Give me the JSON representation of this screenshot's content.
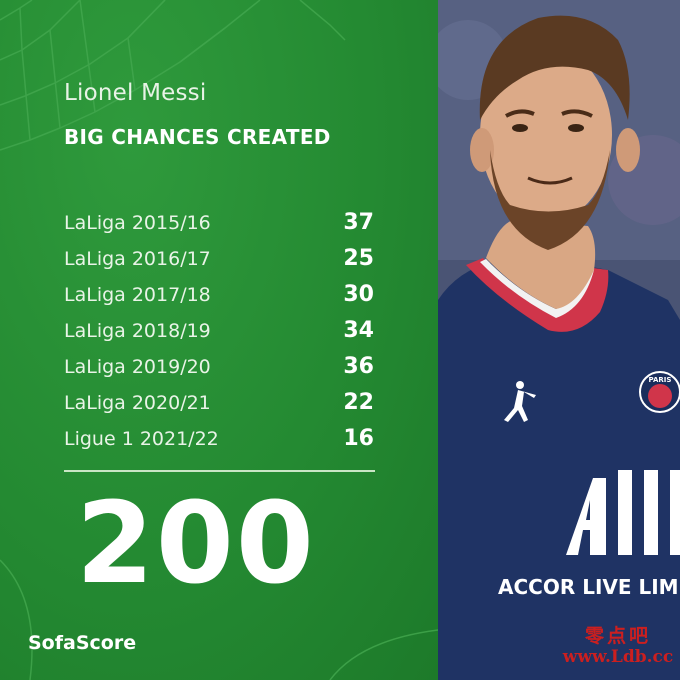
{
  "player": {
    "name": "Lionel Messi"
  },
  "stat": {
    "title": "BIG CHANCES CREATED"
  },
  "seasons": [
    {
      "label": "LaLiga 2015/16",
      "value": "37"
    },
    {
      "label": "LaLiga 2016/17",
      "value": "25"
    },
    {
      "label": "LaLiga 2017/18",
      "value": "30"
    },
    {
      "label": "LaLiga 2018/19",
      "value": "34"
    },
    {
      "label": "LaLiga 2019/20",
      "value": "36"
    },
    {
      "label": "LaLiga 2020/21",
      "value": "22"
    },
    {
      "label": "Ligue 1 2021/22",
      "value": "16"
    }
  ],
  "total": "200",
  "brand": "SofaScore",
  "jersey": {
    "sponsor": "ACCOR LIVE LIMI",
    "crest_text": "PARIS"
  },
  "watermark": {
    "cn": "零点吧",
    "url": "www.Ldb.cc"
  },
  "colors": {
    "panel_green": "#248a32",
    "jersey_navy": "#1f3364",
    "collar_red": "#d0354a"
  }
}
